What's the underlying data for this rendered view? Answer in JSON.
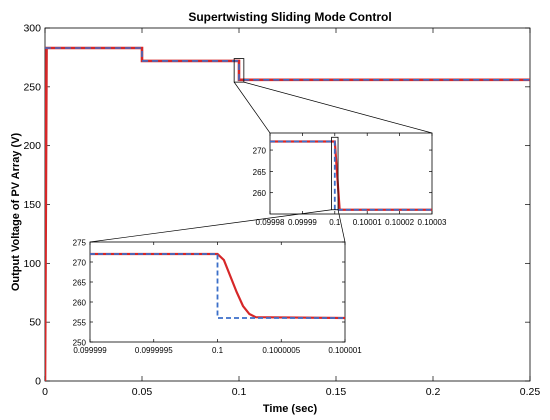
{
  "chart_data": [
    {
      "type": "line",
      "title": "Supertwisting Sliding Mode Control",
      "xlabel": "Time (sec)",
      "ylabel": "Output Voltage of PV Array (V)",
      "xlim": [
        0,
        0.25
      ],
      "ylim": [
        0,
        300
      ],
      "xticks": [
        0,
        0.05,
        0.1,
        0.15,
        0.2,
        0.25
      ],
      "xtick_labels": [
        "0",
        "0.05",
        "0.1",
        "0.15",
        "0.2",
        "0.25"
      ],
      "yticks": [
        0,
        50,
        100,
        150,
        200,
        250,
        300
      ],
      "ytick_labels": [
        "0",
        "50",
        "100",
        "150",
        "200",
        "250",
        "300"
      ],
      "grid": false,
      "series": [
        {
          "style": "solid",
          "color": "#d62728",
          "x": [
            0,
            0.0008,
            0.0015,
            0.05,
            0.05,
            0.1,
            0.1,
            0.25
          ],
          "y": [
            0,
            283,
            283,
            283,
            272,
            272,
            256,
            256
          ]
        },
        {
          "style": "dashed",
          "color": "#3b6fc9",
          "x": [
            0,
            0.0012,
            0.05,
            0.05,
            0.1,
            0.1,
            0.25
          ],
          "y": [
            283,
            283,
            283,
            272,
            272,
            256,
            256
          ]
        }
      ],
      "zoom_box": {
        "x": [
          0.0975,
          0.1025
        ],
        "y": [
          254,
          274
        ]
      }
    },
    {
      "type": "line",
      "xlim": [
        0.09998,
        0.10003
      ],
      "ylim": [
        255,
        274
      ],
      "xticks": [
        0.09998,
        0.09999,
        0.1,
        0.10001,
        0.10002,
        0.10003
      ],
      "xtick_labels": [
        "0.09998",
        "0.09999",
        "0.1",
        "0.10001",
        "0.10002",
        "0.10003"
      ],
      "yticks": [
        260,
        265,
        270
      ],
      "ytick_labels": [
        "260",
        "265",
        "270"
      ],
      "series": [
        {
          "style": "solid",
          "color": "#d62728",
          "x": [
            0.09998,
            0.1,
            0.1000015,
            0.10003
          ],
          "y": [
            272,
            272,
            256,
            256
          ]
        },
        {
          "style": "dashed",
          "color": "#3b6fc9",
          "x": [
            0.09998,
            0.1,
            0.1,
            0.10003
          ],
          "y": [
            272,
            272,
            256,
            256
          ]
        }
      ],
      "zoom_box": {
        "x": [
          0.099999,
          0.100001
        ],
        "y": [
          256,
          273
        ]
      }
    },
    {
      "type": "line",
      "xlim": [
        0.099999,
        0.100001
      ],
      "ylim": [
        250,
        275
      ],
      "xticks": [
        0.099999,
        0.0999995,
        0.1,
        0.1000005,
        0.100001
      ],
      "xtick_labels": [
        "0.099999",
        "0.0999995",
        "0.1",
        "0.1000005",
        "0.100001"
      ],
      "yticks": [
        250,
        255,
        260,
        265,
        270,
        275
      ],
      "ytick_labels": [
        "250",
        "255",
        "260",
        "265",
        "270",
        "275"
      ],
      "series": [
        {
          "style": "solid",
          "color": "#d62728",
          "x": [
            0.099999,
            0.1,
            0.10000005,
            0.1000001,
            0.10000015,
            0.1000002,
            0.10000025,
            0.1000003,
            0.100001
          ],
          "y": [
            272,
            272,
            270.5,
            266.5,
            262.5,
            259,
            257,
            256.2,
            256
          ]
        },
        {
          "style": "dashed",
          "color": "#3b6fc9",
          "x": [
            0.099999,
            0.1,
            0.1,
            0.100001
          ],
          "y": [
            272,
            272,
            256,
            256
          ]
        }
      ]
    }
  ]
}
